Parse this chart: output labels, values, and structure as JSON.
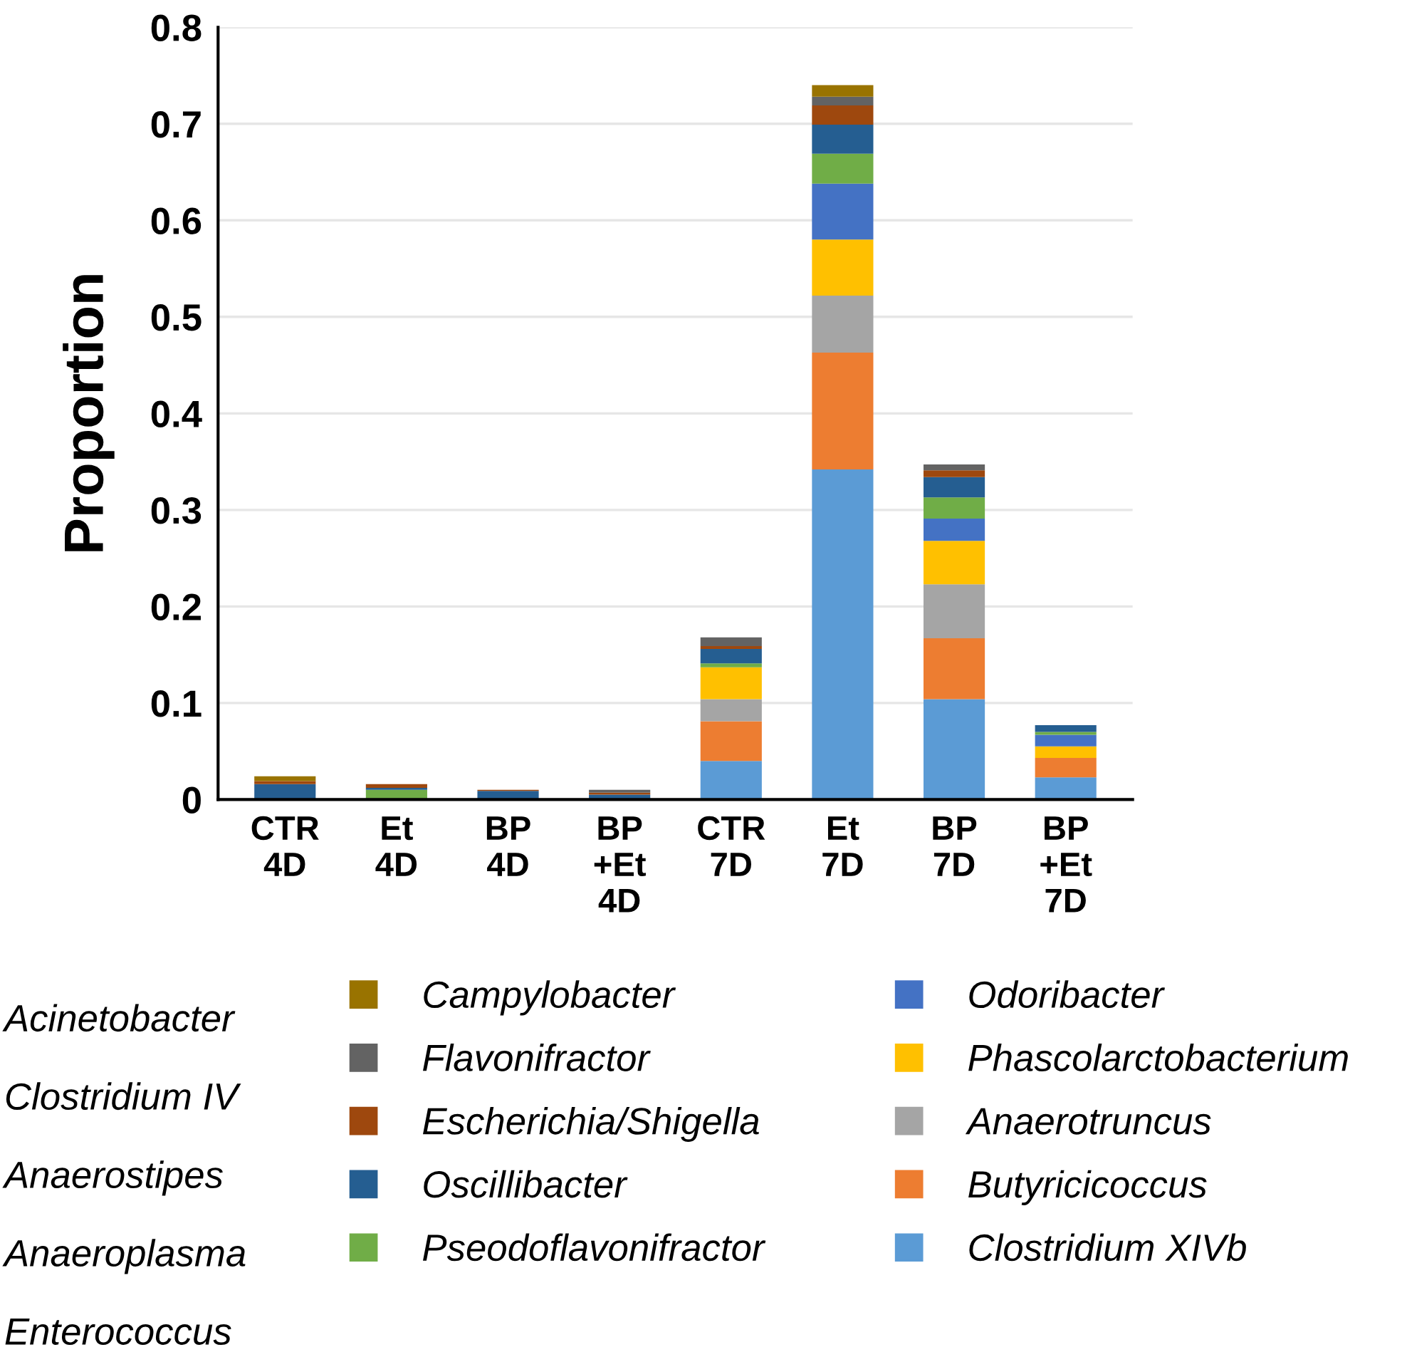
{
  "chart_data": {
    "type": "bar",
    "stacked": true,
    "ylabel": "Proportion",
    "categories": [
      "CTR\n4D",
      "Et\n4D",
      "BP\n4D",
      "BP\n+Et\n4D",
      "CTR\n7D",
      "Et\n7D",
      "BP\n7D",
      "BP\n+Et\n7D"
    ],
    "ylim": [
      0,
      0.8
    ],
    "yticks": [
      0,
      0.1,
      0.2,
      0.3,
      0.4,
      0.5,
      0.6,
      0.7,
      0.8
    ],
    "grid": "y",
    "legend": "bottom",
    "series": [
      {
        "name": "Clostridium XIVb",
        "color": "#5b9bd5",
        "values": [
          0,
          0,
          0,
          0,
          0.04,
          0.342,
          0.104,
          0.023
        ]
      },
      {
        "name": "Butyricicoccus",
        "color": "#ed7d31",
        "values": [
          0,
          0,
          0,
          0,
          0.041,
          0.121,
          0.063,
          0.02
        ]
      },
      {
        "name": "Anaerotruncus",
        "color": "#a5a5a5",
        "values": [
          0,
          0,
          0,
          0,
          0.023,
          0.059,
          0.056,
          0
        ]
      },
      {
        "name": "Phascolarctobacterium",
        "color": "#ffc000",
        "values": [
          0,
          0,
          0,
          null,
          0.033,
          0.058,
          0.045,
          0.012
        ]
      },
      {
        "name": "Odoribacter",
        "color": "#4472c4",
        "values": [
          0,
          0,
          0,
          0,
          0,
          0.058,
          0.023,
          0.012
        ]
      },
      {
        "name": "Pseodoflavonifractor",
        "color": "#70ad47",
        "values": [
          null,
          0.01,
          null,
          0,
          0.004,
          0.031,
          0.022,
          0.003
        ]
      },
      {
        "name": "Oscillibacter",
        "color": "#255e91",
        "values": [
          0.016,
          0.002,
          0.009,
          0.005,
          0.015,
          0.03,
          0.021,
          0.007
        ]
      },
      {
        "name": "Escherichia/Shigella",
        "color": "#9e480e",
        "values": [
          0.003,
          0.004,
          0.001,
          0.002,
          0.003,
          0.02,
          0.007,
          0
        ]
      },
      {
        "name": "Flavonifractor",
        "color": "#636363",
        "values": [
          0,
          0,
          0,
          0.003,
          0.009,
          0.009,
          0.006,
          0
        ]
      },
      {
        "name": "Campylobacter",
        "color": "#997300",
        "values": [
          0.005,
          0,
          0,
          0,
          0,
          0.012,
          0,
          0
        ]
      }
    ],
    "annotations": [
      "Acinetobacter",
      "Clostridium IV",
      "Anaerostipes",
      "Anaeroplasma",
      "Enterococcus"
    ]
  }
}
